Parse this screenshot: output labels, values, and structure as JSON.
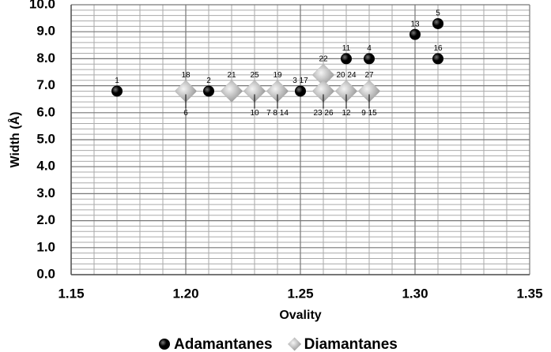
{
  "chart_data": {
    "type": "scatter",
    "x_label": "Ovality",
    "y_label": "Width (Å)",
    "xlim": [
      1.15,
      1.35
    ],
    "xticks": [
      1.15,
      {
        "value": 1.2,
        "label": "1.20"
      },
      1.25,
      {
        "value": 1.3,
        "label": "1.30"
      },
      1.35
    ],
    "ylim": [
      0,
      10
    ],
    "yticks": [
      {
        "value": 0,
        "label": "0.0"
      },
      {
        "value": 1,
        "label": "1.0"
      },
      {
        "value": 2,
        "label": "2.0"
      },
      {
        "value": 3,
        "label": "3.0"
      },
      {
        "value": 4,
        "label": "4.0"
      },
      {
        "value": 5,
        "label": "5.0"
      },
      {
        "value": 6,
        "label": "6.0"
      },
      {
        "value": 7,
        "label": "7.0"
      },
      {
        "value": 8,
        "label": "8.0"
      },
      {
        "value": 9,
        "label": "9.0"
      },
      {
        "value": 10,
        "label": "10.0"
      }
    ],
    "grid": true,
    "legend": "bottom",
    "series": [
      {
        "name": "Adamantanes",
        "marker": "circle",
        "color": "#000000",
        "x": [
          1.17,
          1.21,
          1.25,
          1.27,
          1.28,
          1.3,
          1.31,
          1.31
        ],
        "values": [
          6.8,
          6.8,
          6.8,
          8.0,
          8.0,
          8.9,
          9.3,
          8.0
        ],
        "labels_above": [
          "1",
          "2",
          "3 17",
          "11",
          "4",
          "13",
          "5",
          "16"
        ],
        "labels_below": [
          null,
          null,
          null,
          null,
          null,
          null,
          null,
          null
        ]
      },
      {
        "name": "Diamantanes",
        "marker": "diamond",
        "color": "#b8b8b8",
        "x": [
          1.2,
          1.22,
          1.23,
          1.24,
          1.26,
          1.26,
          1.27,
          1.28
        ],
        "values": [
          6.8,
          6.8,
          6.8,
          6.8,
          7.4,
          6.8,
          6.8,
          6.8
        ],
        "labels_above": [
          "18",
          "21",
          "25",
          "19",
          "22",
          null,
          "20 24",
          "27"
        ],
        "labels_below": [
          "6",
          null,
          "10",
          "7 8 14",
          null,
          "23 26",
          "12",
          "9 15"
        ]
      }
    ]
  }
}
